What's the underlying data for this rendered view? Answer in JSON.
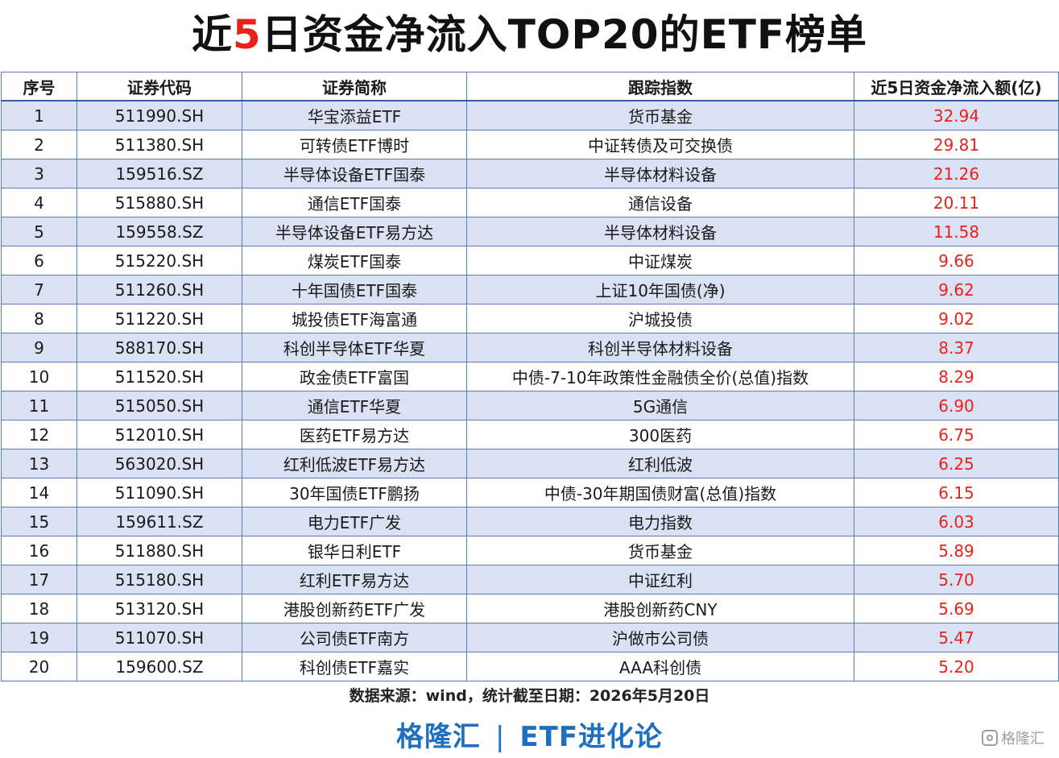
{
  "title": {
    "pre": "近",
    "highlight": "5",
    "post": "日资金净流入TOP20的ETF榜单"
  },
  "colors": {
    "accent_red": "#e8221b",
    "brand_blue": "#1f6fc0",
    "row_stripe": "#d9e1f2"
  },
  "table": {
    "headers": [
      "序号",
      "证券代码",
      "证券简称",
      "跟踪指数",
      "近5日资金净流入额(亿)"
    ],
    "rows": [
      [
        "1",
        "511990.SH",
        "华宝添益ETF",
        "货币基金",
        "32.94"
      ],
      [
        "2",
        "511380.SH",
        "可转债ETF博时",
        "中证转债及可交换债",
        "29.81"
      ],
      [
        "3",
        "159516.SZ",
        "半导体设备ETF国泰",
        "半导体材料设备",
        "21.26"
      ],
      [
        "4",
        "515880.SH",
        "通信ETF国泰",
        "通信设备",
        "20.11"
      ],
      [
        "5",
        "159558.SZ",
        "半导体设备ETF易方达",
        "半导体材料设备",
        "11.58"
      ],
      [
        "6",
        "515220.SH",
        "煤炭ETF国泰",
        "中证煤炭",
        "9.66"
      ],
      [
        "7",
        "511260.SH",
        "十年国债ETF国泰",
        "上证10年国债(净)",
        "9.62"
      ],
      [
        "8",
        "511220.SH",
        "城投债ETF海富通",
        "沪城投债",
        "9.02"
      ],
      [
        "9",
        "588170.SH",
        "科创半导体ETF华夏",
        "科创半导体材料设备",
        "8.37"
      ],
      [
        "10",
        "511520.SH",
        "政金债ETF富国",
        "中债-7-10年政策性金融债全价(总值)指数",
        "8.29"
      ],
      [
        "11",
        "515050.SH",
        "通信ETF华夏",
        "5G通信",
        "6.90"
      ],
      [
        "12",
        "512010.SH",
        "医药ETF易方达",
        "300医药",
        "6.75"
      ],
      [
        "13",
        "563020.SH",
        "红利低波ETF易方达",
        "红利低波",
        "6.25"
      ],
      [
        "14",
        "511090.SH",
        "30年国债ETF鹏扬",
        "中债-30年期国债财富(总值)指数",
        "6.15"
      ],
      [
        "15",
        "159611.SZ",
        "电力ETF广发",
        "电力指数",
        "6.03"
      ],
      [
        "16",
        "511880.SH",
        "银华日利ETF",
        "货币基金",
        "5.89"
      ],
      [
        "17",
        "515180.SH",
        "红利ETF易方达",
        "中证红利",
        "5.70"
      ],
      [
        "18",
        "513120.SH",
        "港股创新药ETF广发",
        "港股创新药CNY",
        "5.69"
      ],
      [
        "19",
        "511070.SH",
        "公司债ETF南方",
        "沪做市公司债",
        "5.47"
      ],
      [
        "20",
        "159600.SZ",
        "科创债ETF嘉实",
        "AAA科创债",
        "5.20"
      ]
    ]
  },
  "footnote": "数据来源：wind，统计截至日期：2026年5月20日",
  "brand": {
    "left": "格隆汇",
    "separator": "|",
    "right": "ETF进化论"
  },
  "watermark": {
    "icon": "gelonghui-logo-icon",
    "text": "格隆汇"
  }
}
